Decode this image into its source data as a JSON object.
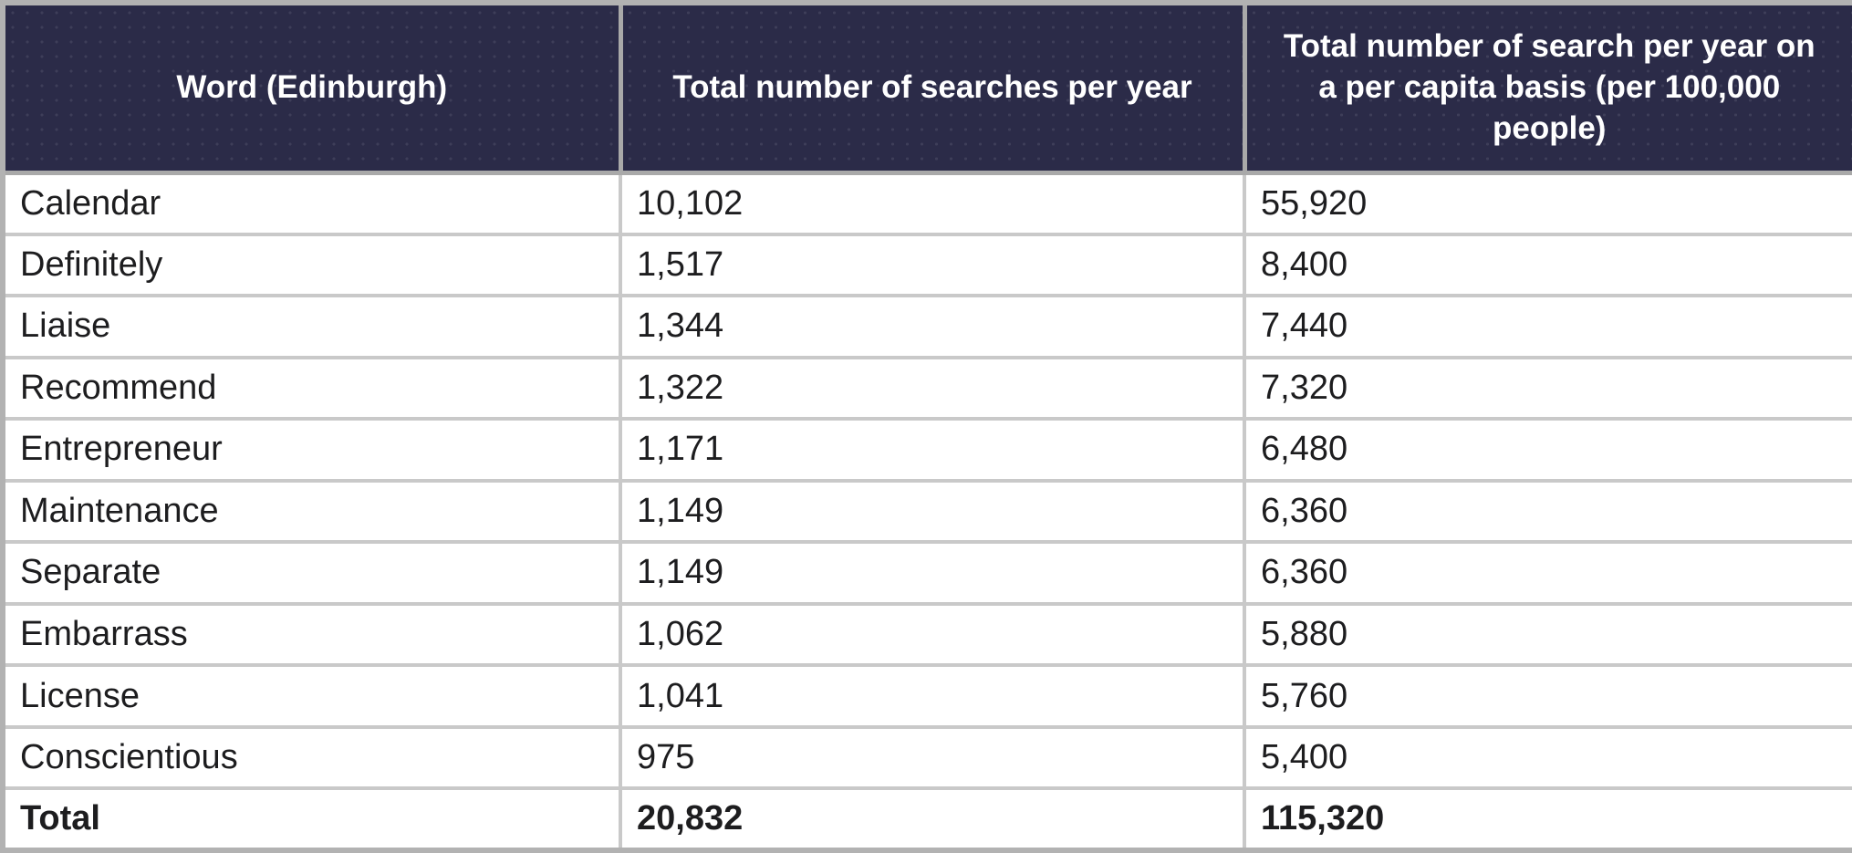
{
  "table": {
    "columns": [
      {
        "label": "Word (Edinburgh)"
      },
      {
        "label": "Total number of searches per year"
      },
      {
        "label": "Total number of search per year on a per capita basis (per 100,000 people)"
      }
    ],
    "rows": [
      {
        "word": "Calendar",
        "searches": "10,102",
        "per_capita": "55,920"
      },
      {
        "word": "Definitely",
        "searches": "1,517",
        "per_capita": "8,400"
      },
      {
        "word": "Liaise",
        "searches": "1,344",
        "per_capita": "7,440"
      },
      {
        "word": "Recommend",
        "searches": "1,322",
        "per_capita": "7,320"
      },
      {
        "word": "Entrepreneur",
        "searches": "1,171",
        "per_capita": "6,480"
      },
      {
        "word": "Maintenance",
        "searches": "1,149",
        "per_capita": "6,360"
      },
      {
        "word": "Separate",
        "searches": "1,149",
        "per_capita": "6,360"
      },
      {
        "word": "Embarrass",
        "searches": "1,062",
        "per_capita": "5,880"
      },
      {
        "word": "License",
        "searches": "1,041",
        "per_capita": "5,760"
      },
      {
        "word": "Conscientious",
        "searches": "975",
        "per_capita": "5,400"
      }
    ],
    "total_row": {
      "word": "Total",
      "searches": "20,832",
      "per_capita": "115,320"
    }
  },
  "colors": {
    "header_bg": "#2b2b48",
    "header_text": "#ffffff",
    "body_text": "#1d1d1f",
    "border_outer": "#b2b2b2",
    "border_inner": "#c9c9c9"
  },
  "chart_data": {
    "type": "table",
    "title": "",
    "columns": [
      "Word (Edinburgh)",
      "Total number of searches per year",
      "Total number of search per year on a per capita basis (per 100,000 people)"
    ],
    "categories": [
      "Calendar",
      "Definitely",
      "Liaise",
      "Recommend",
      "Entrepreneur",
      "Maintenance",
      "Separate",
      "Embarrass",
      "License",
      "Conscientious",
      "Total"
    ],
    "series": [
      {
        "name": "Total number of searches per year",
        "values": [
          10102,
          1517,
          1344,
          1322,
          1171,
          1149,
          1149,
          1062,
          1041,
          975,
          20832
        ]
      },
      {
        "name": "Total number of search per year on a per capita basis (per 100,000 people)",
        "values": [
          55920,
          8400,
          7440,
          7320,
          6480,
          6360,
          6360,
          5880,
          5760,
          5400,
          115320
        ]
      }
    ]
  }
}
